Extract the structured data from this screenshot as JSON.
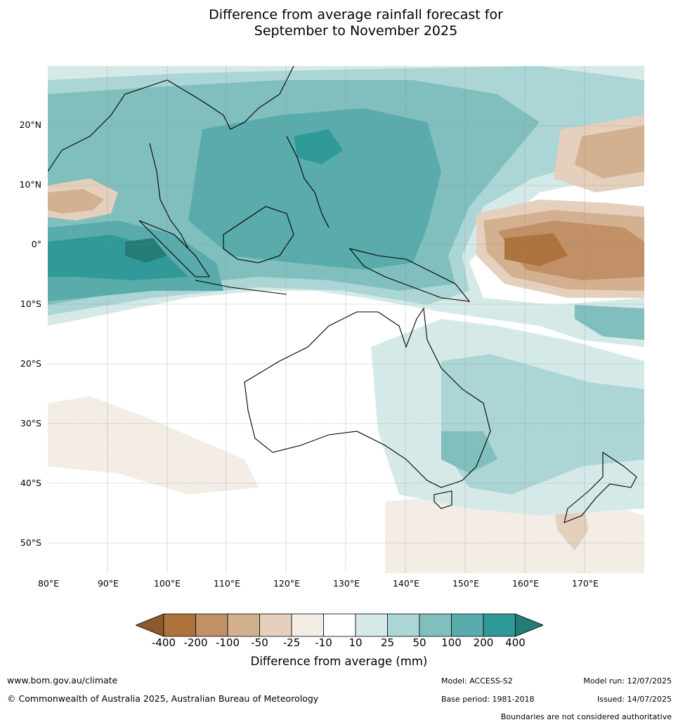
{
  "title_line1": "Difference from average rainfall forecast for",
  "title_line2": "September to November 2025",
  "map": {
    "lat_labels": [
      "20°N",
      "10°N",
      "0°",
      "10°S",
      "20°S",
      "30°S",
      "40°S",
      "50°S"
    ],
    "lon_labels": [
      "80°E",
      "90°E",
      "100°E",
      "110°E",
      "120°E",
      "130°E",
      "140°E",
      "150°E",
      "160°E",
      "170°E"
    ]
  },
  "legend": {
    "title": "Difference from average (mm)",
    "ticks": [
      "-400",
      "-200",
      "-100",
      "-50",
      "-25",
      "-10",
      "10",
      "25",
      "50",
      "100",
      "200",
      "400"
    ],
    "colors": [
      "#8c5a2a",
      "#ad733d",
      "#c19066",
      "#d3b08f",
      "#e5d0be",
      "#f3ede6",
      "#ffffff",
      "#d5eae8",
      "#acd6d5",
      "#80bfbe",
      "#5aabab",
      "#2f9a97",
      "#257b76"
    ]
  },
  "footer": {
    "url": "www.bom.gov.au/climate",
    "copyright": "© Commonwealth of Australia 2025, Australian Bureau of Meteorology",
    "model": "Model: ACCESS-S2",
    "base_period": "Base period: 1981-2018",
    "model_run": "Model run: 12/07/2025",
    "issued": "Issued: 14/07/2025",
    "disclaimer": "Boundaries are not considered authoritative"
  }
}
